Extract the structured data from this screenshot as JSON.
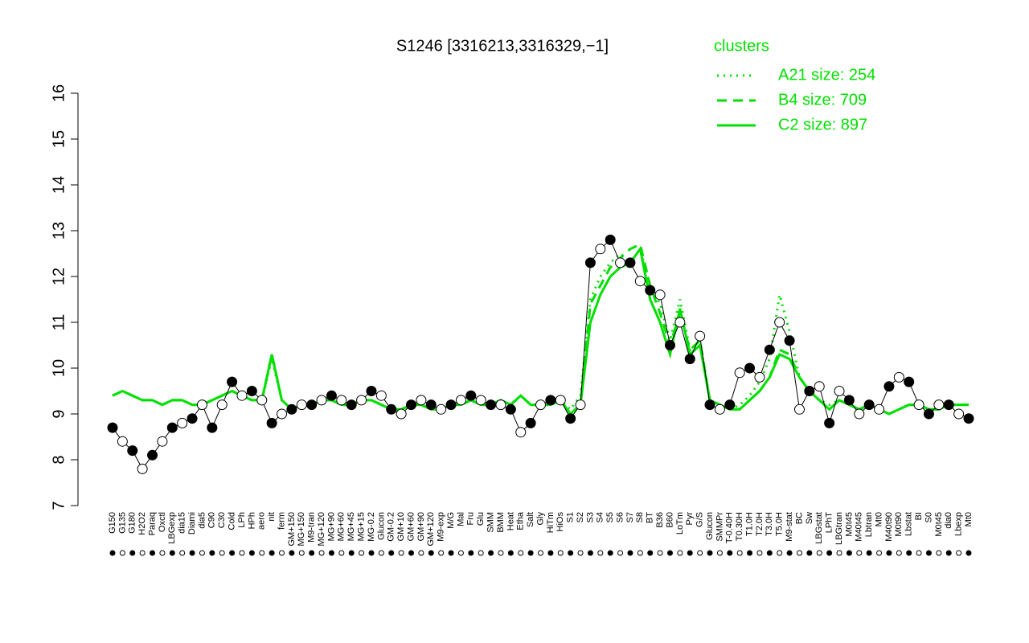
{
  "chart_data": {
    "type": "line",
    "title": "S1246 [3316213,3316329,−1]",
    "legend_title": "clusters",
    "legend_position": "top-right",
    "ylim": [
      7,
      16
    ],
    "yticks": [
      7,
      8,
      9,
      10,
      11,
      12,
      13,
      14,
      15,
      16
    ],
    "categories": [
      "G150",
      "G135",
      "G180",
      "H2O2",
      "Paraq",
      "Oxctl",
      "LBGexp",
      "dia15",
      "Diami",
      "dia5",
      "C90",
      "C30",
      "Cold",
      "LPh",
      "HPh",
      "aero",
      "nit",
      "ferm",
      "GM+150",
      "MG+150",
      "M9-tran",
      "MG+120",
      "MG+90",
      "MG+60",
      "MG+45",
      "MG+15",
      "MG-0.2",
      "Glucon",
      "GM-0.2",
      "GM+10",
      "GM+60",
      "GM+90",
      "GM+120",
      "M9-exp",
      "M/G",
      "Mal",
      "Fru",
      "Glu",
      "SMM",
      "BMM",
      "Heat",
      "Etha",
      "Salt",
      "Gly",
      "HiTm",
      "HiOs",
      "S1",
      "S2",
      "S3",
      "S4",
      "S5",
      "S6",
      "S7",
      "S8",
      "BT",
      "B36",
      "B60",
      "LoTm",
      "Pyr",
      "G/S",
      "Glucon",
      "SMMPr",
      "T-0.40H",
      "T0.30H",
      "T1.0H",
      "T2.0H",
      "T3.0H",
      "T5.0H",
      "M9-stat",
      "BC",
      "Sw",
      "LBGstat",
      "LPhT",
      "LBGtran",
      "M0t45",
      "M40t45",
      "Lbtran",
      "Mt0",
      "M40t90",
      "M0t90",
      "Lbstat",
      "BI",
      "S0",
      "M0t45",
      "dia0",
      "Lbexp",
      "Mt0"
    ],
    "points": {
      "color": "#000000",
      "values": [
        8.7,
        8.4,
        8.2,
        7.8,
        8.1,
        8.4,
        8.7,
        8.8,
        8.9,
        9.2,
        8.7,
        9.2,
        9.7,
        9.4,
        9.5,
        9.3,
        8.8,
        9.0,
        9.1,
        9.2,
        9.2,
        9.3,
        9.4,
        9.3,
        9.2,
        9.3,
        9.5,
        9.4,
        9.1,
        9.0,
        9.2,
        9.3,
        9.2,
        9.1,
        9.2,
        9.3,
        9.4,
        9.3,
        9.2,
        9.2,
        9.1,
        8.6,
        8.8,
        9.2,
        9.3,
        9.3,
        8.9,
        9.2,
        12.3,
        12.6,
        12.8,
        12.3,
        12.3,
        11.9,
        11.7,
        11.6,
        10.5,
        11.0,
        10.2,
        10.7,
        9.2,
        9.1,
        9.2,
        9.9,
        10.0,
        9.8,
        10.4,
        11.0,
        10.6,
        9.1,
        9.5,
        9.6,
        8.8,
        9.5,
        9.3,
        9.0,
        9.2,
        9.1,
        9.6,
        9.8,
        9.7,
        9.2,
        9.0,
        9.2,
        9.2,
        9.0,
        8.9
      ]
    },
    "series": [
      {
        "name": "A21 size: 254",
        "color": "#00e000",
        "dash": "dotted",
        "values": [
          9.4,
          9.5,
          9.4,
          9.3,
          9.3,
          9.2,
          9.3,
          9.3,
          9.2,
          9.2,
          9.3,
          9.4,
          9.5,
          9.4,
          9.3,
          9.3,
          10.2,
          9.3,
          9.1,
          9.2,
          9.2,
          9.3,
          9.3,
          9.2,
          9.2,
          9.3,
          9.3,
          9.2,
          9.1,
          9.1,
          9.2,
          9.2,
          9.1,
          9.1,
          9.2,
          9.2,
          9.3,
          9.2,
          9.2,
          9.3,
          9.2,
          9.4,
          9.2,
          9.2,
          9.2,
          9.3,
          9.1,
          9.4,
          11.5,
          12.0,
          12.3,
          12.5,
          12.3,
          12.6,
          11.8,
          11.4,
          10.6,
          11.5,
          10.4,
          10.6,
          9.3,
          9.2,
          9.1,
          9.2,
          9.4,
          9.7,
          10.2,
          11.6,
          10.8,
          9.8,
          9.5,
          9.3,
          9.2,
          9.3,
          9.2,
          9.1,
          9.2,
          9.1,
          9.0,
          9.1,
          9.2,
          9.2,
          9.1,
          9.1,
          9.2,
          9.2,
          9.2
        ]
      },
      {
        "name": "B4 size: 709",
        "color": "#00e000",
        "dash": "dashed",
        "values": [
          9.4,
          9.5,
          9.4,
          9.3,
          9.3,
          9.2,
          9.3,
          9.3,
          9.2,
          9.2,
          9.3,
          9.4,
          9.5,
          9.4,
          9.3,
          9.3,
          10.3,
          9.3,
          9.1,
          9.2,
          9.2,
          9.3,
          9.3,
          9.2,
          9.2,
          9.3,
          9.3,
          9.2,
          9.1,
          9.1,
          9.2,
          9.2,
          9.1,
          9.1,
          9.2,
          9.2,
          9.3,
          9.2,
          9.2,
          9.3,
          9.2,
          9.4,
          9.2,
          9.2,
          9.2,
          9.3,
          9.0,
          9.2,
          11.4,
          11.8,
          12.2,
          12.4,
          12.6,
          12.7,
          11.8,
          11.2,
          10.5,
          11.2,
          10.4,
          10.6,
          9.3,
          9.2,
          9.1,
          9.1,
          9.3,
          9.5,
          9.8,
          10.4,
          10.3,
          9.8,
          9.5,
          9.3,
          9.1,
          9.3,
          9.2,
          9.1,
          9.2,
          9.1,
          9.0,
          9.1,
          9.2,
          9.2,
          9.1,
          9.1,
          9.2,
          9.2,
          9.2
        ]
      },
      {
        "name": "C2 size: 897",
        "color": "#00e000",
        "dash": "solid",
        "values": [
          9.4,
          9.5,
          9.4,
          9.3,
          9.3,
          9.2,
          9.3,
          9.3,
          9.2,
          9.2,
          9.3,
          9.4,
          9.5,
          9.4,
          9.3,
          9.3,
          10.3,
          9.3,
          9.1,
          9.2,
          9.2,
          9.3,
          9.3,
          9.2,
          9.2,
          9.3,
          9.3,
          9.2,
          9.1,
          9.1,
          9.2,
          9.2,
          9.1,
          9.1,
          9.2,
          9.2,
          9.3,
          9.2,
          9.2,
          9.3,
          9.2,
          9.4,
          9.2,
          9.2,
          9.2,
          9.3,
          9.0,
          9.2,
          11.0,
          11.6,
          12.0,
          12.2,
          12.3,
          12.6,
          11.5,
          11.0,
          10.3,
          11.3,
          10.3,
          10.5,
          9.3,
          9.2,
          9.1,
          9.1,
          9.3,
          9.5,
          9.8,
          10.3,
          10.2,
          9.8,
          9.5,
          9.3,
          9.1,
          9.3,
          9.2,
          9.1,
          9.2,
          9.1,
          9.0,
          9.1,
          9.2,
          9.2,
          9.1,
          9.1,
          9.2,
          9.2,
          9.2
        ]
      }
    ]
  }
}
